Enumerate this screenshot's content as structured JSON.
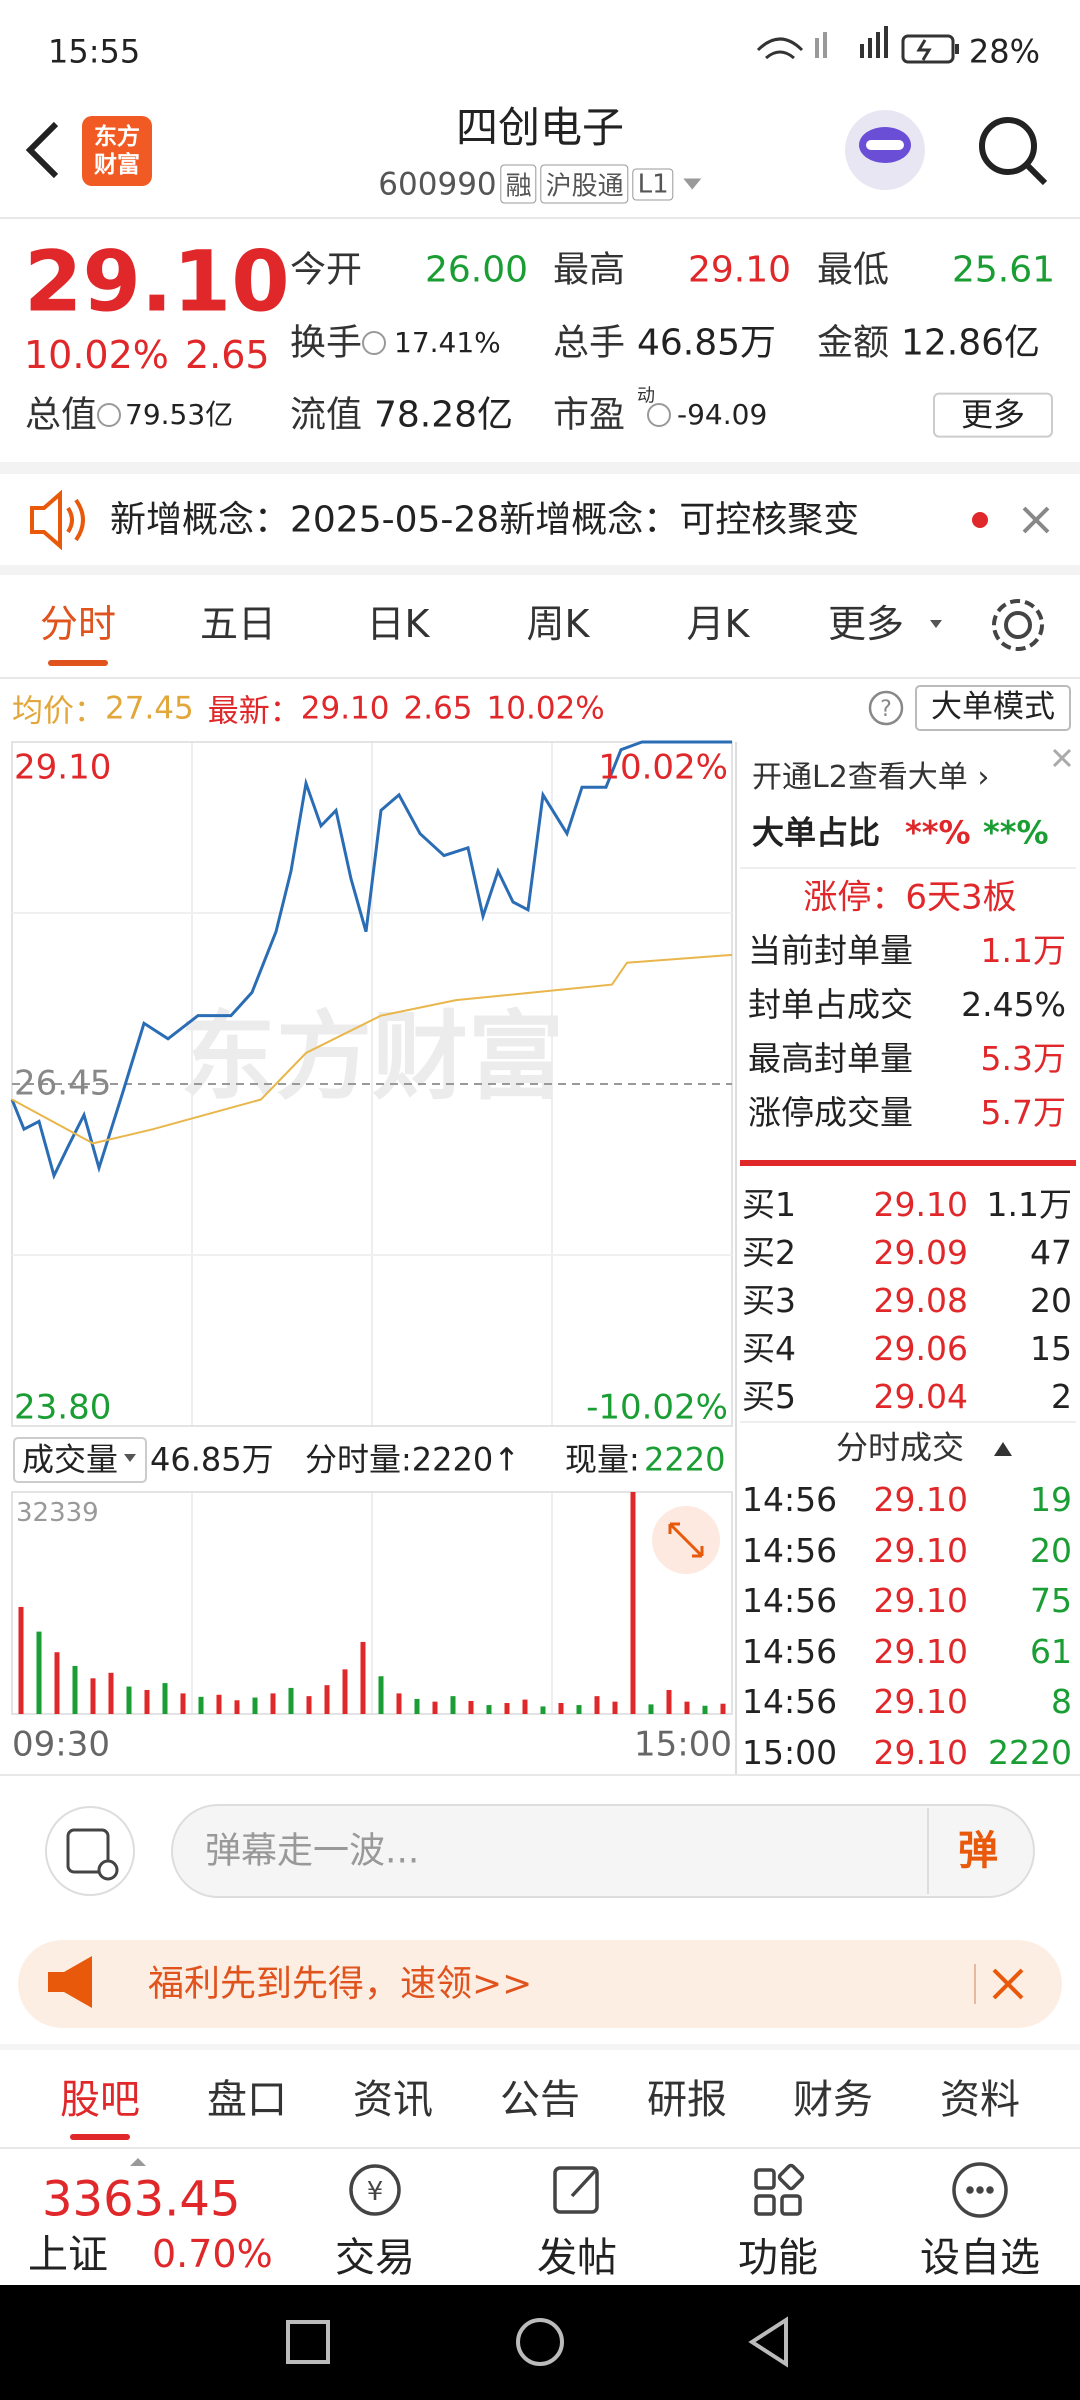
{
  "status_bar": {
    "time": "15:55",
    "battery": "28%"
  },
  "header": {
    "logo": [
      "东方",
      "财富"
    ],
    "title": "四创电子",
    "code": "600990",
    "badges": [
      "融",
      "沪股通",
      "L1"
    ]
  },
  "quote": {
    "price": "29.10",
    "change_pct": "10.02%",
    "change": "2.65",
    "stats": [
      {
        "label": "今开",
        "value": "26.00",
        "color": "green"
      },
      {
        "label": "最高",
        "value": "29.10",
        "color": "red"
      },
      {
        "label": "最低",
        "value": "25.61",
        "color": "green"
      },
      {
        "label": "换手",
        "value": "17.41%",
        "color": "black"
      },
      {
        "label": "总手",
        "value": "46.85万",
        "color": "black"
      },
      {
        "label": "金额",
        "value": "12.86亿",
        "color": "black"
      },
      {
        "label": "总值",
        "value": "79.53亿",
        "color": "black"
      },
      {
        "label": "流值",
        "value": "78.28亿",
        "color": "black"
      },
      {
        "label": "市盈",
        "sup": "动",
        "value": "-94.09",
        "color": "black"
      }
    ],
    "more": "更多"
  },
  "notice": {
    "text": "新增概念：2025-05-28新增概念：可控核聚变"
  },
  "tabs": {
    "items": [
      "分时",
      "五日",
      "日K",
      "周K",
      "月K",
      "更多"
    ],
    "active": 0
  },
  "info_line": {
    "avg_label": "均价：",
    "avg": "27.45",
    "last_label": "最新：",
    "last": "29.10",
    "change": "2.65",
    "pct": "10.02%",
    "mode": "大单模式"
  },
  "chart_data": [
    {
      "type": "line",
      "watermark": "东方财富",
      "xlim": [
        0,
        240
      ],
      "ylim": [
        23.8,
        29.1
      ],
      "yticks": [
        {
          "value": 29.1,
          "label": "29.10"
        },
        26.45,
        {
          "value": 23.8,
          "label": "23.80"
        }
      ],
      "y2lim": [
        -10.02,
        10.02
      ],
      "y2ticks": [
        {
          "value": 10.02,
          "label": "10.02%"
        },
        {
          "value": -10.02,
          "label": "-10.02%"
        }
      ],
      "series": [
        {
          "color": "#2a6db5",
          "x": [
            0,
            4,
            9,
            14,
            19,
            24,
            29,
            37,
            44,
            52,
            62,
            73,
            80,
            88,
            93,
            98,
            103,
            108,
            113,
            118,
            123,
            129,
            136,
            144,
            152,
            157,
            162,
            167,
            172,
            177,
            185,
            190,
            198,
            203,
            210,
            240
          ],
          "values": [
            26.33,
            26.1,
            26.16,
            25.74,
            25.98,
            26.21,
            25.8,
            26.39,
            26.92,
            26.8,
            26.98,
            26.98,
            27.16,
            27.63,
            28.1,
            28.78,
            28.45,
            28.57,
            28.04,
            27.63,
            28.57,
            28.69,
            28.39,
            28.22,
            28.28,
            27.75,
            28.1,
            27.86,
            27.8,
            28.69,
            28.39,
            28.75,
            28.75,
            29.04,
            29.1,
            29.1
          ]
        },
        {
          "color": "#e8b64a",
          "x": [
            0,
            27,
            47,
            83,
            98,
            123,
            148,
            174,
            200,
            205,
            240
          ],
          "values": [
            26.33,
            25.99,
            26.1,
            26.33,
            26.69,
            26.98,
            27.1,
            27.16,
            27.22,
            27.39,
            27.45
          ]
        }
      ]
    },
    {
      "type": "bar",
      "title": "成交量",
      "total": "46.85万",
      "tick_volume": "分时量:2220↑",
      "current_label": "现量:",
      "current": "2220",
      "xlim": [
        0,
        240
      ],
      "xticks": [
        {
          "value": 0,
          "label": "09:30"
        },
        {
          "value": 240,
          "label": "15:00"
        }
      ],
      "ylim": [
        0,
        32339
      ],
      "yticks": [
        32339
      ],
      "x": [
        3,
        9,
        15,
        21,
        27,
        33,
        39,
        45,
        51,
        57,
        63,
        69,
        75,
        81,
        87,
        93,
        99,
        105,
        111,
        117,
        123,
        129,
        135,
        141,
        147,
        153,
        159,
        165,
        171,
        177,
        183,
        189,
        195,
        201,
        207,
        213,
        219,
        225,
        231,
        237
      ],
      "values": [
        15600,
        12000,
        9000,
        7000,
        5200,
        6000,
        4000,
        3500,
        4500,
        3000,
        2500,
        2800,
        2000,
        2400,
        3000,
        3800,
        2600,
        4200,
        6500,
        10500,
        5500,
        3000,
        2200,
        1800,
        2600,
        1900,
        1300,
        1600,
        2100,
        1100,
        1600,
        1300,
        2600,
        1800,
        32339,
        1400,
        3500,
        1800,
        1200,
        1500
      ],
      "colors": [
        "#e0272a",
        "#1a9e34",
        "#e0272a",
        "#1a9e34",
        "#e0272a",
        "#e0272a",
        "#1a9e34",
        "#e0272a",
        "#1a9e34",
        "#e0272a",
        "#1a9e34",
        "#e0272a",
        "#e0272a",
        "#1a9e34",
        "#e0272a",
        "#1a9e34",
        "#e0272a",
        "#e0272a",
        "#e0272a",
        "#e0272a",
        "#1a9e34",
        "#e0272a",
        "#1a9e34",
        "#e0272a",
        "#1a9e34",
        "#e0272a",
        "#1a9e34",
        "#e0272a",
        "#e0272a",
        "#1a9e34",
        "#e0272a",
        "#1a9e34",
        "#e0272a",
        "#e0272a",
        "#e0272a",
        "#1a9e34",
        "#e0272a",
        "#e0272a",
        "#1a9e34",
        "#e0272a"
      ]
    }
  ],
  "side_panel": {
    "l2": "开通L2查看大单 ›",
    "big_ratio_label": "大单占比",
    "big_ratio": [
      "**%",
      "**%"
    ],
    "limit": "涨停：6天3板",
    "rows": [
      [
        "当前封单量",
        "1.1万"
      ],
      [
        "封单占成交",
        "2.45%"
      ],
      [
        "最高封单量",
        "5.3万"
      ],
      [
        "涨停成交量",
        "5.7万"
      ]
    ],
    "bids": [
      [
        "买1",
        "29.10",
        "1.1万"
      ],
      [
        "买2",
        "29.09",
        "47"
      ],
      [
        "买3",
        "29.08",
        "20"
      ],
      [
        "买4",
        "29.06",
        "15"
      ],
      [
        "买5",
        "29.04",
        "2"
      ]
    ],
    "trades_title": "分时成交",
    "trades": [
      [
        "14:56",
        "29.10",
        "19"
      ],
      [
        "14:56",
        "29.10",
        "20"
      ],
      [
        "14:56",
        "29.10",
        "75"
      ],
      [
        "14:56",
        "29.10",
        "61"
      ],
      [
        "14:56",
        "29.10",
        "8"
      ],
      [
        "15:00",
        "29.10",
        "2220"
      ]
    ]
  },
  "comment": {
    "placeholder": "弹幕走一波...",
    "button": "弹"
  },
  "banner": {
    "text": "福利先到先得，速领>>"
  },
  "sub_tabs": {
    "items": [
      "股吧",
      "盘口",
      "资讯",
      "公告",
      "研报",
      "财务",
      "资料"
    ],
    "active": 0
  },
  "bottom_bar": {
    "index_value": "3363.45",
    "index_name": "上证",
    "index_pct": "0.70%",
    "items": [
      "交易",
      "发帖",
      "功能",
      "设自选"
    ]
  }
}
